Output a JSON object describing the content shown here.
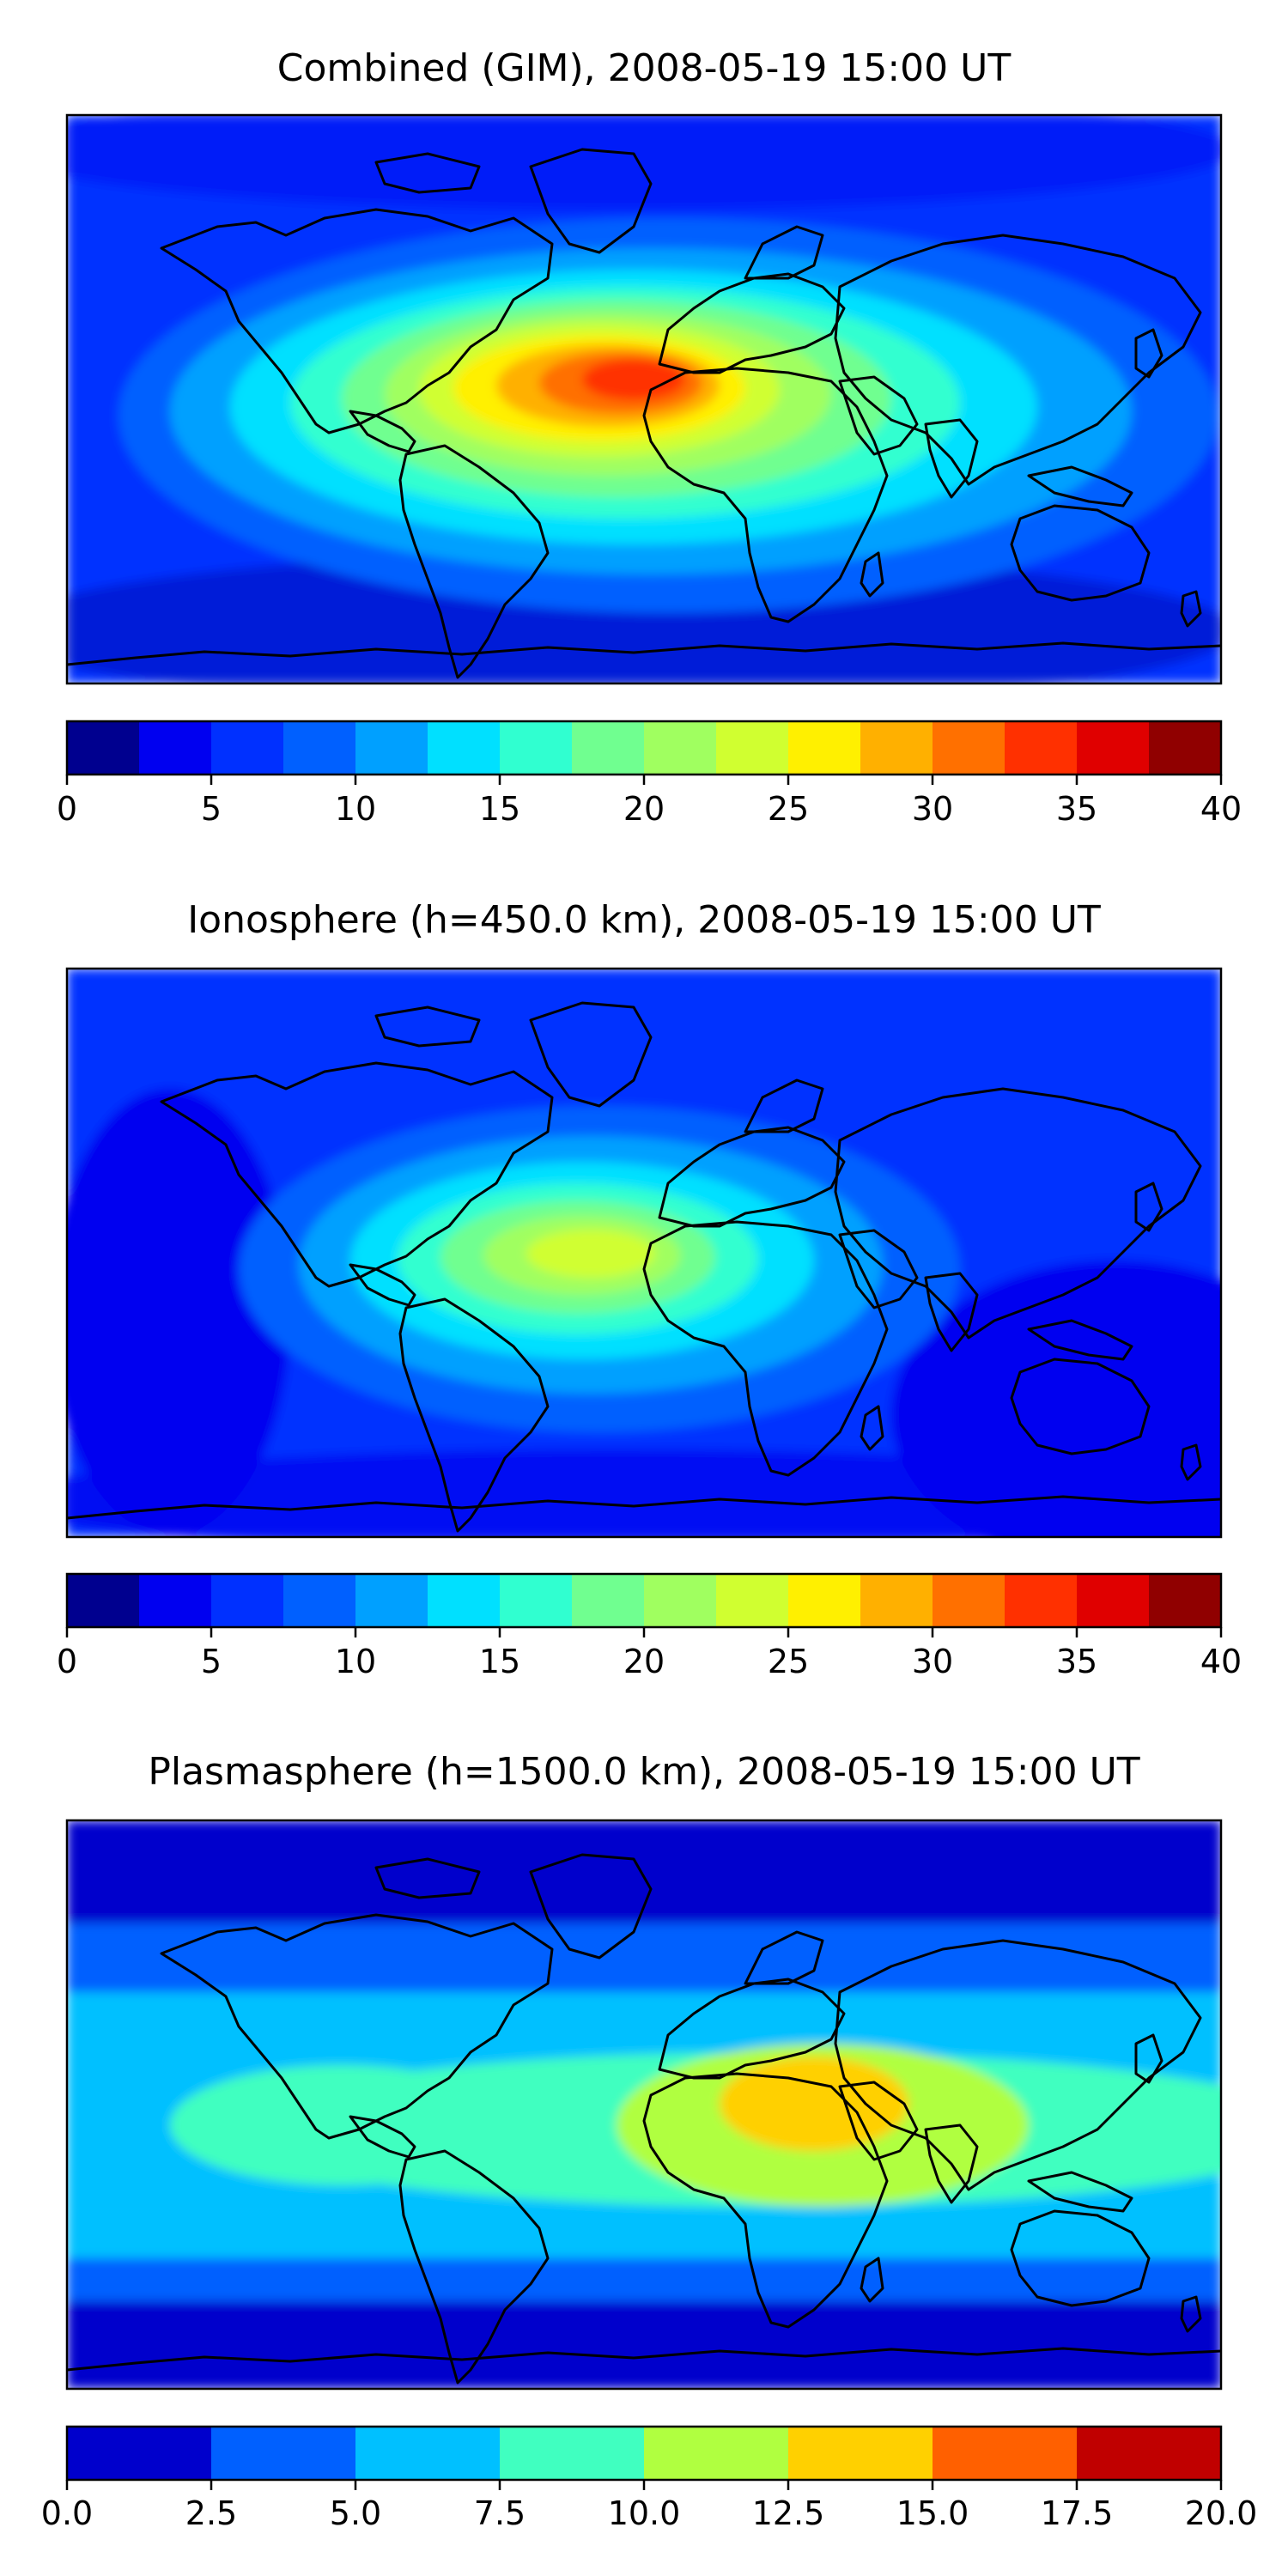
{
  "figure": {
    "panels": [
      {
        "id": "combined",
        "title": "Combined (GIM), 2008-05-19 15:00 UT",
        "colorbar": {
          "min": 0,
          "max": 40,
          "ticks": [
            "0",
            "5",
            "10",
            "15",
            "20",
            "25",
            "30",
            "35",
            "40"
          ],
          "colors": [
            "#00008f",
            "#0000f0",
            "#0030ff",
            "#0060ff",
            "#00a0ff",
            "#00e0ff",
            "#30ffd0",
            "#70ff90",
            "#a0ff60",
            "#d0ff30",
            "#fff000",
            "#ffb000",
            "#ff7000",
            "#ff3000",
            "#e00000",
            "#900000"
          ]
        }
      },
      {
        "id": "ionosphere",
        "title": "Ionosphere  (h=450.0 km), 2008-05-19 15:00 UT",
        "colorbar": {
          "min": 0,
          "max": 40,
          "ticks": [
            "0",
            "5",
            "10",
            "15",
            "20",
            "25",
            "30",
            "35",
            "40"
          ],
          "colors": [
            "#00008f",
            "#0000f0",
            "#0030ff",
            "#0060ff",
            "#00a0ff",
            "#00e0ff",
            "#30ffd0",
            "#70ff90",
            "#a0ff60",
            "#d0ff30",
            "#fff000",
            "#ffb000",
            "#ff7000",
            "#ff3000",
            "#e00000",
            "#900000"
          ]
        }
      },
      {
        "id": "plasmasphere",
        "title": "Plasmasphere (h=1500.0 km), 2008-05-19 15:00 UT",
        "colorbar": {
          "min": 0,
          "max": 20,
          "ticks": [
            "0.0",
            "2.5",
            "5.0",
            "7.5",
            "10.0",
            "12.5",
            "15.0",
            "17.5",
            "20.0"
          ],
          "colors": [
            "#0000cc",
            "#0060ff",
            "#00c0ff",
            "#40ffc0",
            "#b0ff40",
            "#ffd000",
            "#ff6000",
            "#c00000"
          ]
        }
      }
    ]
  }
}
